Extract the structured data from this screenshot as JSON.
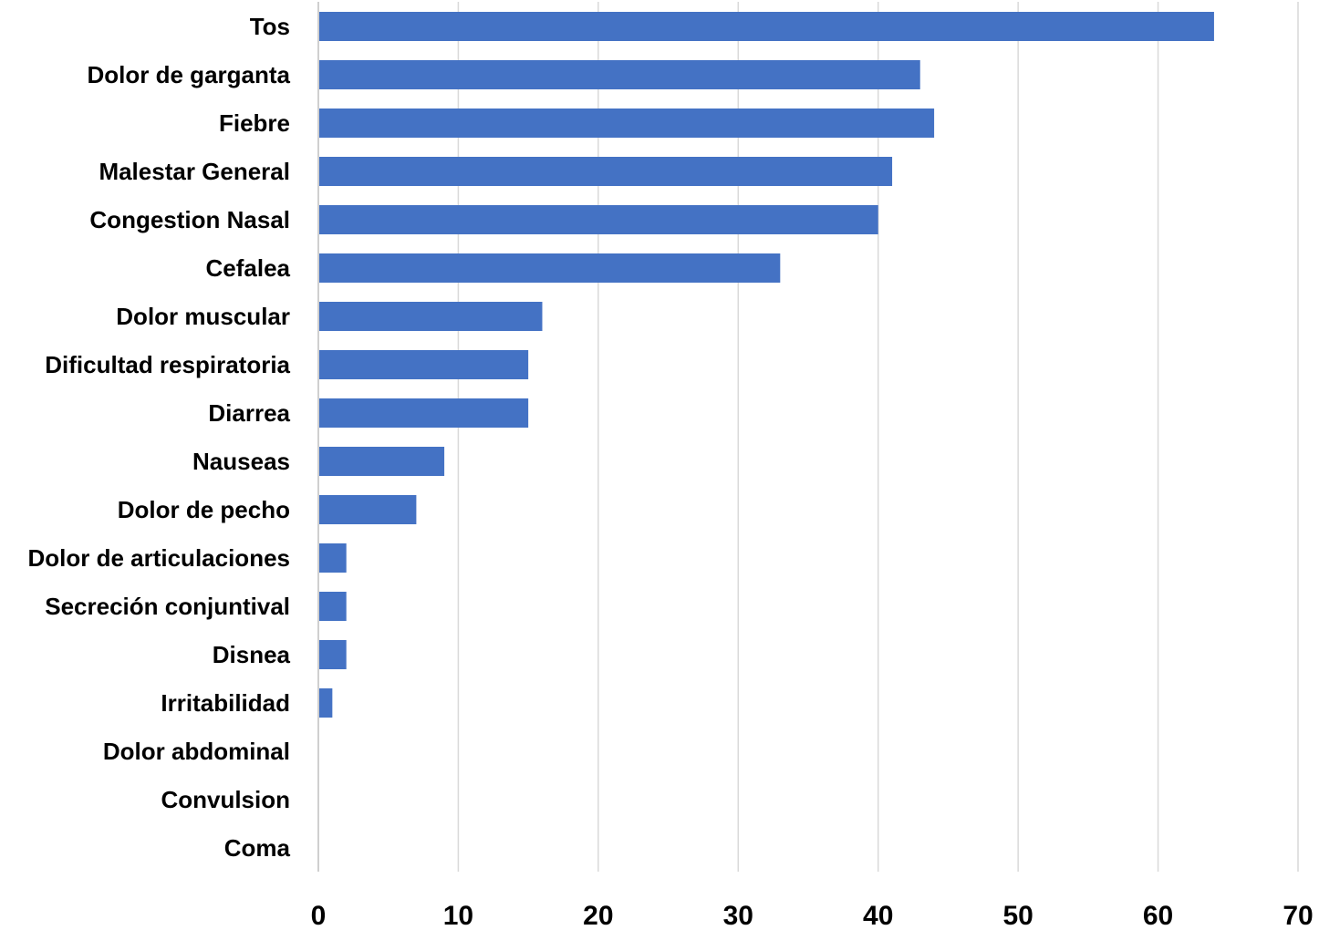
{
  "chart_data": {
    "type": "bar",
    "orientation": "horizontal",
    "title": "",
    "xlabel": "",
    "ylabel": "",
    "categories": [
      "Tos",
      "Dolor de garganta",
      "Fiebre",
      "Malestar General",
      "Congestion Nasal",
      "Cefalea",
      "Dolor muscular",
      "Dificultad respiratoria",
      "Diarrea",
      "Nauseas",
      "Dolor de pecho",
      "Dolor de articulaciones",
      "Secreción conjuntival",
      "Disnea",
      "Irritabilidad",
      "Dolor abdominal",
      "Convulsion",
      "Coma"
    ],
    "values": [
      64,
      43,
      44,
      41,
      40,
      33,
      16,
      15,
      15,
      9,
      7,
      2,
      2,
      2,
      1,
      0,
      0,
      0
    ],
    "xlim": [
      0,
      70
    ],
    "xticks": [
      0,
      10,
      20,
      30,
      40,
      50,
      60,
      70
    ],
    "xtick_labels": [
      "0",
      "10",
      "20",
      "30",
      "40",
      "50",
      "60",
      "70"
    ],
    "grid": "vertical",
    "legend": "none",
    "colors": {
      "bar": "#4472C4",
      "grid": "#d9d9d9"
    }
  }
}
